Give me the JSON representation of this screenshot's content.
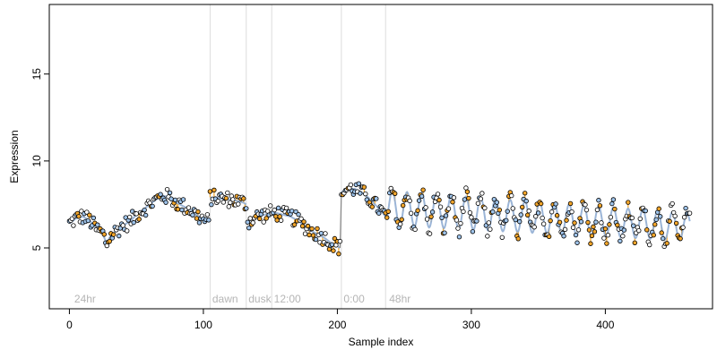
{
  "chart_data": {
    "type": "scatter",
    "title": "",
    "xlabel": "Sample index",
    "ylabel": "Expression",
    "xlim": [
      -15,
      480
    ],
    "ylim": [
      1.5,
      19
    ],
    "xticks": [
      0,
      100,
      200,
      300,
      400
    ],
    "yticks": [
      5,
      10,
      15
    ],
    "grid": false,
    "colors": {
      "point_blue": "#9ec3ea",
      "point_orange": "#f2a52a",
      "connector_orange": "#f2a52a",
      "fit_line": "#8aa8d0",
      "vline": "#dcdcdc",
      "annotation": "#b5b5b5"
    },
    "annotations": [
      {
        "label": "24hr",
        "x": 3
      },
      {
        "label": "dawn",
        "x": 106
      },
      {
        "label": "dusk",
        "x": 133
      },
      {
        "label": "12:00",
        "x": 152
      },
      {
        "label": "0:00",
        "x": 204
      },
      {
        "label": "48hr",
        "x": 238
      }
    ],
    "vlines": [
      105,
      132,
      151,
      203,
      236
    ],
    "segments": [
      {
        "name": "",
        "x": [
          0,
          5,
          10,
          15,
          20,
          25,
          28,
          30,
          35,
          40,
          45,
          50,
          55,
          60,
          65,
          70,
          75,
          80,
          85,
          90,
          95,
          100,
          104
        ],
        "y": [
          6.4,
          6.7,
          6.8,
          6.6,
          6.1,
          5.8,
          5.2,
          5.6,
          6.0,
          6.3,
          6.5,
          6.9,
          7.2,
          7.5,
          7.8,
          8.0,
          7.9,
          7.6,
          7.4,
          7.2,
          6.9,
          6.6,
          6.5
        ]
      },
      {
        "name": "",
        "x": [
          105,
          110,
          115,
          120,
          125,
          130,
          132
        ],
        "y": [
          7.9,
          7.9,
          7.8,
          7.8,
          7.7,
          7.6,
          7.5
        ]
      },
      {
        "name": "",
        "x": [
          133,
          140,
          145,
          150,
          155,
          160,
          165,
          170,
          175,
          180,
          185,
          190,
          195,
          200,
          202
        ],
        "y": [
          6.5,
          6.8,
          6.9,
          7.0,
          7.0,
          6.9,
          6.8,
          6.6,
          6.3,
          6.0,
          5.8,
          5.6,
          5.3,
          5.1,
          5.0
        ]
      },
      {
        "name": "",
        "x": [
          203,
          208,
          213,
          218,
          223,
          228,
          233,
          236
        ],
        "y": [
          8.2,
          8.4,
          8.4,
          8.2,
          7.9,
          7.5,
          7.1,
          6.8
        ]
      },
      {
        "name": "",
        "fn": "oscillation",
        "x_range": [
          237,
          463
        ],
        "base_start": 7.3,
        "base_end": 6.2,
        "amp_start": 1.0,
        "amp_end": 0.8,
        "period": 11,
        "phase_x": 241
      }
    ],
    "scatter_note": "observations scatter around the segments",
    "n_points": 465,
    "point_colors_cycle": [
      "orange",
      "blue",
      "white"
    ]
  }
}
